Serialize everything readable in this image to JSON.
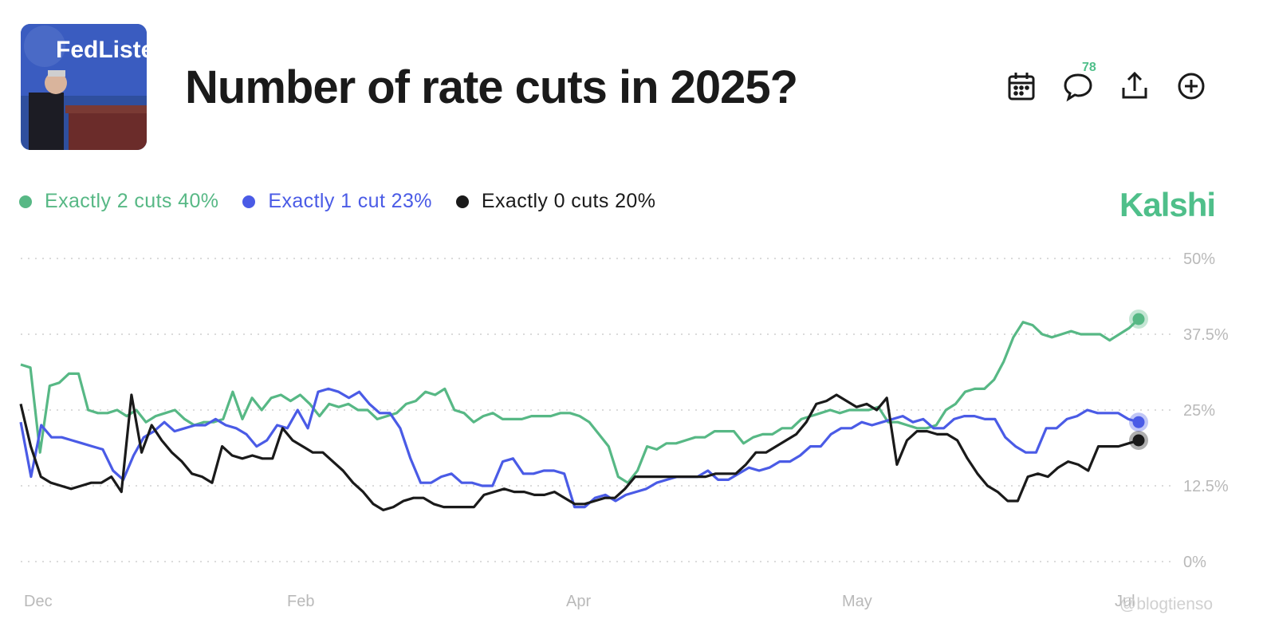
{
  "header": {
    "title": "Number of rate cuts in 2025?",
    "thumbnail_text": "FedListens",
    "comment_count": "78",
    "brand": "Kalshi",
    "watermark": "@blogtienso"
  },
  "colors": {
    "green": "#57b885",
    "blue": "#4a5be6",
    "black": "#1a1a1a",
    "brand": "#4fbf8a"
  },
  "icons": [
    "calendar-icon",
    "comment-icon",
    "share-icon",
    "add-icon"
  ],
  "chart_data": {
    "type": "line",
    "x_labels": [
      "Dec",
      "Feb",
      "Apr",
      "May",
      "Jul"
    ],
    "y_ticks": [
      "0%",
      "12.5%",
      "25%",
      "37.5%",
      "50%"
    ],
    "ylim": [
      0,
      50
    ],
    "grid": "dotted horizontal",
    "series": [
      {
        "name": "Exactly 2 cuts",
        "display": "Exactly 2 cuts 40%",
        "latest": "40%",
        "color": "#57b885",
        "values": [
          32.5,
          32,
          18,
          29,
          29.5,
          31,
          31,
          25,
          24.5,
          24.5,
          25,
          24,
          25,
          23,
          24,
          24.5,
          25,
          23.5,
          22.5,
          23,
          23,
          23.5,
          28,
          23.5,
          27,
          25,
          27,
          27.5,
          26.5,
          27.5,
          26,
          24,
          26,
          25.5,
          26,
          25,
          25,
          23.5,
          24,
          24.5,
          26,
          26.5,
          28,
          27.5,
          28.5,
          25,
          24.5,
          23,
          24,
          24.5,
          23.5,
          23.5,
          23.5,
          24,
          24,
          24,
          24.5,
          24.5,
          24,
          23,
          21,
          19,
          14,
          13,
          15,
          19,
          18.5,
          19.5,
          19.5,
          20,
          20.5,
          20.5,
          21.5,
          21.5,
          21.5,
          19.5,
          20.5,
          21,
          21,
          22,
          22,
          23.5,
          24,
          24.5,
          25,
          24.5,
          25,
          25,
          25,
          25.5,
          23,
          23,
          22.5,
          22,
          22,
          22.5,
          25,
          26,
          28,
          28.5,
          28.5,
          30,
          33,
          37,
          39.5,
          39,
          37.5,
          37,
          37.5,
          38,
          37.5,
          37.5,
          37.5,
          36.5,
          37.5,
          38.5,
          40
        ],
        "data_name": "series-line-exactly-2-cuts"
      },
      {
        "name": "Exactly 1 cut",
        "display": "Exactly 1 cut 23%",
        "latest": "23%",
        "color": "#4a5be6",
        "values": [
          23,
          14,
          22.5,
          20.5,
          20.5,
          20,
          19.5,
          19,
          18.5,
          15,
          13.5,
          17.5,
          20.5,
          21.5,
          23,
          21.5,
          22,
          22.5,
          22.5,
          23.5,
          22.5,
          22,
          21,
          19,
          20,
          22.5,
          22,
          25,
          22,
          28,
          28.5,
          28,
          27,
          28,
          26,
          24.5,
          24.5,
          22,
          17,
          13,
          13,
          14,
          14.5,
          13,
          13,
          12.5,
          12.5,
          16.5,
          17,
          14.5,
          14.5,
          15,
          15,
          14.5,
          9,
          9,
          10.5,
          11,
          10,
          11,
          11.5,
          12,
          13,
          13.5,
          14,
          14,
          14,
          15,
          13.5,
          13.5,
          14.5,
          15.5,
          15,
          15.5,
          16.5,
          16.5,
          17.5,
          19,
          19,
          21,
          22,
          22,
          23,
          22.5,
          23,
          23.5,
          24,
          23,
          23.5,
          22,
          22,
          23.5,
          24,
          24,
          23.5,
          23.5,
          20.5,
          19,
          18,
          18,
          22,
          22,
          23.5,
          24,
          25,
          24.5,
          24.5,
          24.5,
          23.5,
          23
        ],
        "data_name": "series-line-exactly-1-cut"
      },
      {
        "name": "Exactly 0 cuts",
        "display": "Exactly 0 cuts 20%",
        "latest": "20%",
        "color": "#1a1a1a",
        "values": [
          26,
          19,
          14,
          13,
          12.5,
          12,
          12.5,
          13,
          13,
          14,
          11.5,
          27.5,
          18,
          22.5,
          20,
          18,
          16.5,
          14.5,
          14,
          13,
          19,
          17.5,
          17,
          17.5,
          17,
          17,
          22,
          20,
          19,
          18,
          18,
          16.5,
          15,
          13,
          11.5,
          9.5,
          8.5,
          9,
          10,
          10.5,
          10.5,
          9.5,
          9,
          9,
          9,
          9,
          11,
          11.5,
          12,
          11.5,
          11.5,
          11,
          11,
          11.5,
          10.5,
          9.5,
          9.5,
          10,
          10.5,
          10.5,
          12,
          14,
          14,
          14,
          14,
          14,
          14,
          14,
          14,
          14.5,
          14.5,
          14.5,
          16,
          18,
          18,
          19,
          20,
          21,
          23,
          26,
          26.5,
          27.5,
          26.5,
          25.5,
          26,
          25,
          27,
          16,
          20,
          21.5,
          21.5,
          21,
          21,
          20,
          17,
          14.5,
          12.5,
          11.5,
          10,
          10,
          14,
          14.5,
          14,
          15.5,
          16.5,
          16,
          15,
          19,
          19,
          19,
          19.5,
          20
        ],
        "data_name": "series-line-exactly-0-cuts"
      }
    ]
  }
}
